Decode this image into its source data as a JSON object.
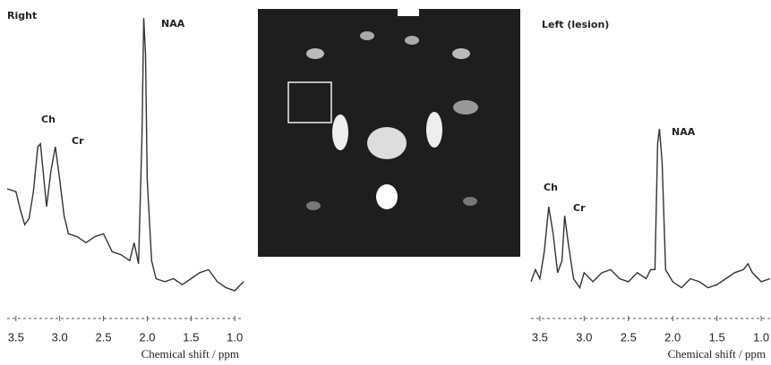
{
  "chart_data": [
    {
      "type": "line",
      "title": "Right",
      "x_label": "Chemical shift / ppm",
      "color": "#333333",
      "annotations": [
        "Ch",
        "Cr",
        "NAA"
      ],
      "xlim": [
        3.6,
        0.9
      ],
      "xticks": [
        3.5,
        {
          "value": 3,
          "label": "3.0"
        },
        2.5,
        {
          "value": 2,
          "label": "2.0"
        },
        1.5,
        {
          "value": 1,
          "label": "1.0"
        }
      ],
      "ylim": [
        0,
        100
      ],
      "x": [
        3.6,
        3.5,
        3.45,
        3.4,
        3.35,
        3.3,
        3.25,
        3.22,
        3.18,
        3.15,
        3.1,
        3.05,
        3.0,
        2.95,
        2.9,
        2.8,
        2.7,
        2.6,
        2.5,
        2.4,
        2.3,
        2.2,
        2.15,
        2.1,
        2.06,
        2.04,
        2.02,
        2.0,
        1.95,
        1.9,
        1.8,
        1.7,
        1.6,
        1.5,
        1.4,
        1.3,
        1.2,
        1.1,
        1.0,
        0.9
      ],
      "values": [
        40,
        39,
        33,
        28,
        30,
        39,
        54,
        55,
        43,
        34,
        46,
        54,
        43,
        31,
        25,
        24,
        22,
        24,
        25,
        19,
        18,
        16,
        22,
        15,
        58,
        97,
        85,
        43,
        16,
        10,
        9,
        10,
        8,
        10,
        12,
        13,
        9,
        7,
        6,
        9
      ]
    },
    {
      "type": "line",
      "title": "Left (lesion)",
      "x_label": "Chemical shift / ppm",
      "color": "#333333",
      "annotations": [
        "Ch",
        "Cr",
        "NAA"
      ],
      "xlim": [
        3.6,
        0.9
      ],
      "xticks": [
        3.5,
        {
          "value": 3,
          "label": "3.0"
        },
        2.5,
        {
          "value": 2,
          "label": "2.0"
        },
        1.5,
        {
          "value": 1,
          "label": "1.0"
        }
      ],
      "ylim": [
        0,
        100
      ],
      "x": [
        3.6,
        3.55,
        3.5,
        3.45,
        3.4,
        3.35,
        3.3,
        3.25,
        3.22,
        3.18,
        3.12,
        3.05,
        3.0,
        2.9,
        2.8,
        2.7,
        2.6,
        2.5,
        2.4,
        2.3,
        2.25,
        2.2,
        2.17,
        2.15,
        2.12,
        2.08,
        2.0,
        1.9,
        1.8,
        1.7,
        1.6,
        1.5,
        1.4,
        1.3,
        1.2,
        1.15,
        1.1,
        1.0,
        0.9
      ],
      "values": [
        9,
        13,
        10,
        19,
        34,
        25,
        12,
        16,
        31,
        22,
        10,
        7,
        12,
        9,
        12,
        13,
        10,
        9,
        12,
        10,
        13,
        13,
        55,
        60,
        49,
        13,
        9,
        7,
        10,
        9,
        7,
        8,
        10,
        12,
        13,
        15,
        12,
        9,
        10
      ]
    }
  ]
}
